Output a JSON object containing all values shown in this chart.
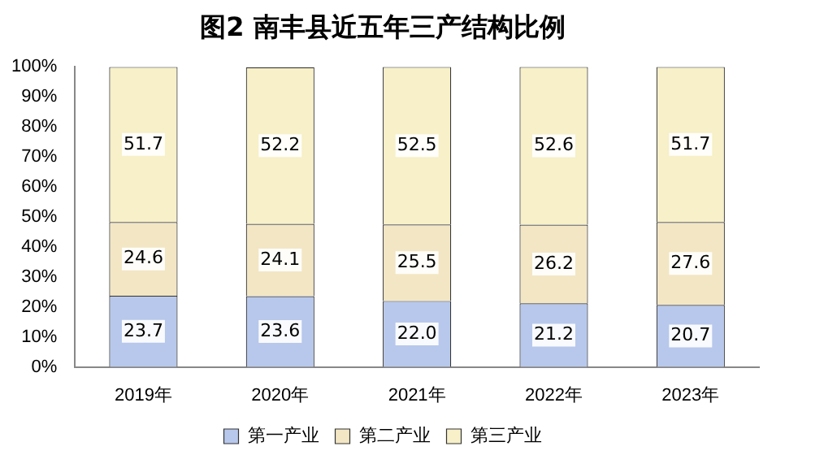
{
  "chart_data": {
    "type": "bar",
    "title": "图2 南丰县近五年三产结构比例",
    "categories": [
      "2019年",
      "2020年",
      "2021年",
      "2022年",
      "2023年"
    ],
    "series": [
      {
        "name": "第一产业",
        "color": "#b8c8ec",
        "values": [
          23.7,
          23.6,
          22.0,
          21.2,
          20.7
        ],
        "value_labels": [
          "23.7",
          "23.6",
          "22.0",
          "21.2",
          "20.7"
        ]
      },
      {
        "name": "第二产业",
        "color": "#f3e6c4",
        "values": [
          24.6,
          24.1,
          25.5,
          26.2,
          27.6
        ],
        "value_labels": [
          "24.6",
          "24.1",
          "25.5",
          "26.2",
          "27.6"
        ]
      },
      {
        "name": "第三产业",
        "color": "#f7f0c8",
        "values": [
          51.7,
          52.2,
          52.5,
          52.6,
          51.7
        ],
        "value_labels": [
          "51.7",
          "52.2",
          "52.5",
          "52.6",
          "51.7"
        ]
      }
    ],
    "stacked": true,
    "ylim": [
      0,
      100
    ],
    "yticks": [
      {
        "value": 0,
        "label": "0%"
      },
      {
        "value": 10,
        "label": "10%"
      },
      {
        "value": 20,
        "label": "20%"
      },
      {
        "value": 30,
        "label": "30%"
      },
      {
        "value": 40,
        "label": "40%"
      },
      {
        "value": 50,
        "label": "50%"
      },
      {
        "value": 60,
        "label": "60%"
      },
      {
        "value": 70,
        "label": "70%"
      },
      {
        "value": 80,
        "label": "80%"
      },
      {
        "value": 90,
        "label": "90%"
      },
      {
        "value": 100,
        "label": "100%"
      }
    ],
    "grid": false,
    "legend": "bottom"
  }
}
